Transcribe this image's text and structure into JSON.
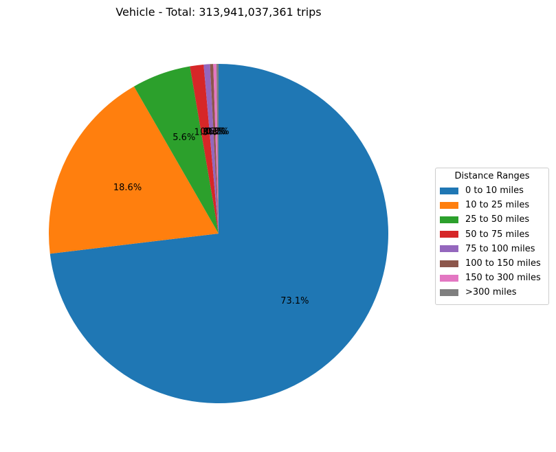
{
  "title": "Vehicle - Total: 313,941,037,361 trips",
  "chart_data": {
    "type": "pie",
    "title": "Vehicle - Total: 313,941,037,361 trips",
    "start_angle_deg": 90,
    "direction": "clockwise",
    "legend_title": "Distance Ranges",
    "legend_position": "center-right",
    "categories": [
      "0 to 10 miles",
      "10 to 25 miles",
      "25 to 50 miles",
      "50 to 75 miles",
      "75 to 100 miles",
      "100 to 150 miles",
      "150 to 300 miles",
      ">300 miles"
    ],
    "values": [
      73.1,
      18.6,
      5.6,
      1.3,
      0.6,
      0.3,
      0.3,
      0.2
    ],
    "value_labels": [
      "73.1%",
      "18.6%",
      "5.6%",
      "1.3%",
      "0.6%",
      "0.3%",
      "0.3%",
      "0.2%"
    ],
    "colors": [
      "#1f77b4",
      "#ff7f0e",
      "#2ca02c",
      "#d62728",
      "#9467bd",
      "#8c564b",
      "#e377c2",
      "#7f7f7f"
    ]
  }
}
